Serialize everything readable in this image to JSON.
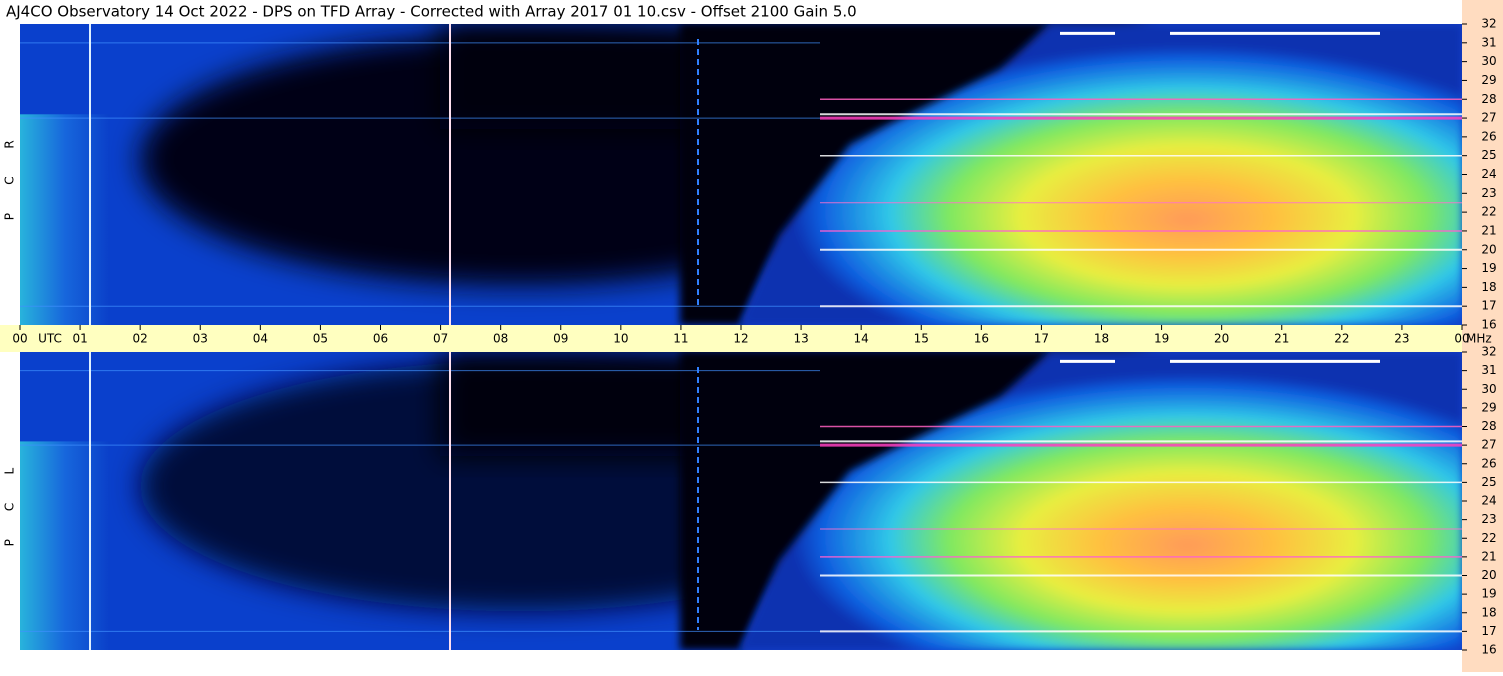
{
  "title": "AJ4CO Observatory  14 Oct 2022  -  DPS on TFD Array  -  Corrected with Array 2017 01 10.csv  -  Offset 2100  Gain 5.0",
  "panels": [
    {
      "label": [
        "R",
        "C",
        "P"
      ]
    },
    {
      "label": [
        "L",
        "C",
        "P"
      ]
    }
  ],
  "time_labels": [
    "00",
    "01",
    "02",
    "03",
    "04",
    "05",
    "06",
    "07",
    "08",
    "09",
    "10",
    "11",
    "12",
    "13",
    "14",
    "15",
    "16",
    "17",
    "18",
    "19",
    "20",
    "21",
    "22",
    "23",
    "00"
  ],
  "time_unit": "UTC",
  "freq_unit": "MHz",
  "freq_ticks": [
    16,
    17,
    18,
    19,
    20,
    21,
    22,
    23,
    24,
    25,
    26,
    27,
    28,
    29,
    30,
    31,
    32
  ],
  "freq_lim": [
    16,
    32
  ]
}
